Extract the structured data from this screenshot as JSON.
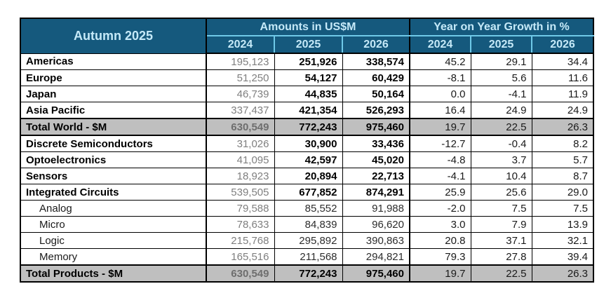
{
  "header": {
    "corner_label": "Autumn 2025",
    "amounts_group_label": "Amounts in US$M",
    "growth_group_label": "Year on Year Growth in %",
    "years": [
      "2024",
      "2025",
      "2026",
      "2024",
      "2025",
      "2026"
    ]
  },
  "colors": {
    "header_bg": "#15597D",
    "header_text": "#C5E9F8",
    "header_divider_cyan": "#6FC9E8",
    "total_row_bg": "#BFBFBF",
    "muted_2024_text": "#7f7f7f",
    "border_black": "#000000"
  },
  "rows": [
    {
      "label": "Americas",
      "type": "main",
      "amounts": [
        "195,123",
        "251,926",
        "338,574"
      ],
      "growth": [
        "45.2",
        "29.1",
        "34.4"
      ]
    },
    {
      "label": "Europe",
      "type": "main",
      "amounts": [
        "51,250",
        "54,127",
        "60,429"
      ],
      "growth": [
        "-8.1",
        "5.6",
        "11.6"
      ]
    },
    {
      "label": "Japan",
      "type": "main",
      "amounts": [
        "46,739",
        "44,835",
        "50,164"
      ],
      "growth": [
        "0.0",
        "-4.1",
        "11.9"
      ]
    },
    {
      "label": "Asia Pacific",
      "type": "main",
      "amounts": [
        "337,437",
        "421,354",
        "526,293"
      ],
      "growth": [
        "16.4",
        "24.9",
        "24.9"
      ]
    },
    {
      "label": "Total World - $M",
      "type": "total",
      "amounts": [
        "630,549",
        "772,243",
        "975,460"
      ],
      "growth": [
        "19.7",
        "22.5",
        "26.3"
      ]
    },
    {
      "label": "Discrete Semiconductors",
      "type": "main",
      "amounts": [
        "31,026",
        "30,900",
        "33,436"
      ],
      "growth": [
        "-12.7",
        "-0.4",
        "8.2"
      ]
    },
    {
      "label": "Optoelectronics",
      "type": "main",
      "amounts": [
        "41,095",
        "42,597",
        "45,020"
      ],
      "growth": [
        "-4.8",
        "3.7",
        "5.7"
      ]
    },
    {
      "label": "Sensors",
      "type": "main",
      "amounts": [
        "18,923",
        "20,894",
        "22,713"
      ],
      "growth": [
        "-4.1",
        "10.4",
        "8.7"
      ]
    },
    {
      "label": "Integrated Circuits",
      "type": "main",
      "amounts": [
        "539,505",
        "677,852",
        "874,291"
      ],
      "growth": [
        "25.9",
        "25.6",
        "29.0"
      ]
    },
    {
      "label": "Analog",
      "type": "sub",
      "amounts": [
        "79,588",
        "85,552",
        "91,988"
      ],
      "growth": [
        "-2.0",
        "7.5",
        "7.5"
      ]
    },
    {
      "label": "Micro",
      "type": "sub",
      "amounts": [
        "78,633",
        "84,839",
        "96,620"
      ],
      "growth": [
        "3.0",
        "7.9",
        "13.9"
      ]
    },
    {
      "label": "Logic",
      "type": "sub",
      "amounts": [
        "215,768",
        "295,892",
        "390,863"
      ],
      "growth": [
        "20.8",
        "37.1",
        "32.1"
      ]
    },
    {
      "label": "Memory",
      "type": "sub",
      "amounts": [
        "165,516",
        "211,568",
        "294,821"
      ],
      "growth": [
        "79.3",
        "27.8",
        "39.4"
      ]
    },
    {
      "label": "Total Products - $M",
      "type": "total",
      "amounts": [
        "630,549",
        "772,243",
        "975,460"
      ],
      "growth": [
        "19.7",
        "22.5",
        "26.3"
      ]
    }
  ],
  "chart_data": {
    "type": "table",
    "title": "Autumn 2025",
    "column_groups": [
      "Amounts in US$M",
      "Year on Year Growth in %"
    ],
    "columns": [
      "2024 US$M",
      "2025 US$M",
      "2026 US$M",
      "2024 YoY %",
      "2025 YoY %",
      "2026 YoY %"
    ],
    "rows": [
      {
        "label": "Americas",
        "amounts_usm": [
          195123,
          251926,
          338574
        ],
        "yoy_growth_pct": [
          45.2,
          29.1,
          34.4
        ]
      },
      {
        "label": "Europe",
        "amounts_usm": [
          51250,
          54127,
          60429
        ],
        "yoy_growth_pct": [
          -8.1,
          5.6,
          11.6
        ]
      },
      {
        "label": "Japan",
        "amounts_usm": [
          46739,
          44835,
          50164
        ],
        "yoy_growth_pct": [
          0.0,
          -4.1,
          11.9
        ]
      },
      {
        "label": "Asia Pacific",
        "amounts_usm": [
          337437,
          421354,
          526293
        ],
        "yoy_growth_pct": [
          16.4,
          24.9,
          24.9
        ]
      },
      {
        "label": "Total World - $M",
        "amounts_usm": [
          630549,
          772243,
          975460
        ],
        "yoy_growth_pct": [
          19.7,
          22.5,
          26.3
        ]
      },
      {
        "label": "Discrete Semiconductors",
        "amounts_usm": [
          31026,
          30900,
          33436
        ],
        "yoy_growth_pct": [
          -12.7,
          -0.4,
          8.2
        ]
      },
      {
        "label": "Optoelectronics",
        "amounts_usm": [
          41095,
          42597,
          45020
        ],
        "yoy_growth_pct": [
          -4.8,
          3.7,
          5.7
        ]
      },
      {
        "label": "Sensors",
        "amounts_usm": [
          18923,
          20894,
          22713
        ],
        "yoy_growth_pct": [
          -4.1,
          10.4,
          8.7
        ]
      },
      {
        "label": "Integrated Circuits",
        "amounts_usm": [
          539505,
          677852,
          874291
        ],
        "yoy_growth_pct": [
          25.9,
          25.6,
          29.0
        ]
      },
      {
        "label": "Analog",
        "amounts_usm": [
          79588,
          85552,
          91988
        ],
        "yoy_growth_pct": [
          -2.0,
          7.5,
          7.5
        ]
      },
      {
        "label": "Micro",
        "amounts_usm": [
          78633,
          84839,
          96620
        ],
        "yoy_growth_pct": [
          3.0,
          7.9,
          13.9
        ]
      },
      {
        "label": "Logic",
        "amounts_usm": [
          215768,
          295892,
          390863
        ],
        "yoy_growth_pct": [
          20.8,
          37.1,
          32.1
        ]
      },
      {
        "label": "Memory",
        "amounts_usm": [
          165516,
          211568,
          294821
        ],
        "yoy_growth_pct": [
          79.3,
          27.8,
          39.4
        ]
      },
      {
        "label": "Total Products - $M",
        "amounts_usm": [
          630549,
          772243,
          975460
        ],
        "yoy_growth_pct": [
          19.7,
          22.5,
          26.3
        ]
      }
    ]
  }
}
